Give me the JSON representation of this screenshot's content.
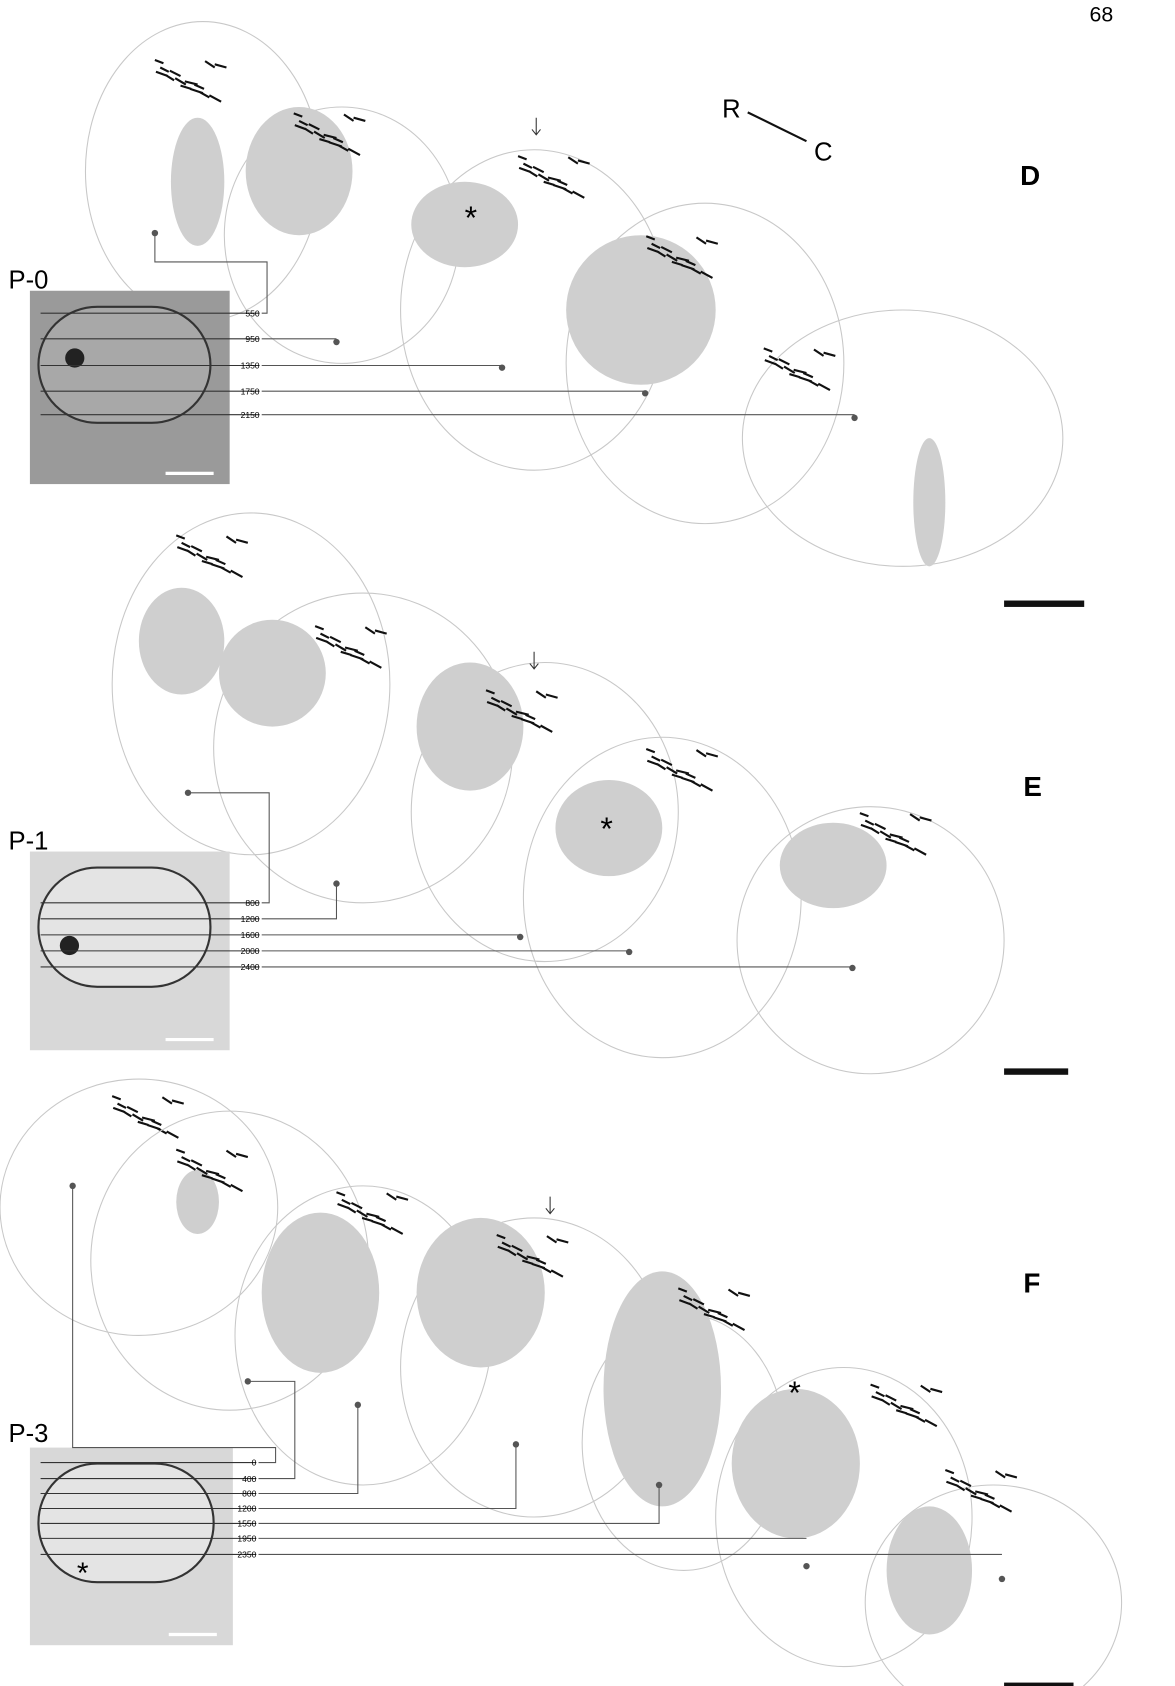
{
  "page_number": "68",
  "orientation": {
    "rostral": "R",
    "caudal": "C"
  },
  "lesion_marker": "*",
  "panels": [
    {
      "label": "D",
      "inset_label": "P-0",
      "depths": [
        550,
        950,
        1350,
        1750,
        2150
      ]
    },
    {
      "label": "E",
      "inset_label": "P-1",
      "depths": [
        800,
        1200,
        1600,
        2000,
        2400
      ]
    },
    {
      "label": "F",
      "inset_label": "P-3",
      "depths": [
        0,
        400,
        800,
        1200,
        1550,
        1950,
        2350
      ]
    }
  ]
}
